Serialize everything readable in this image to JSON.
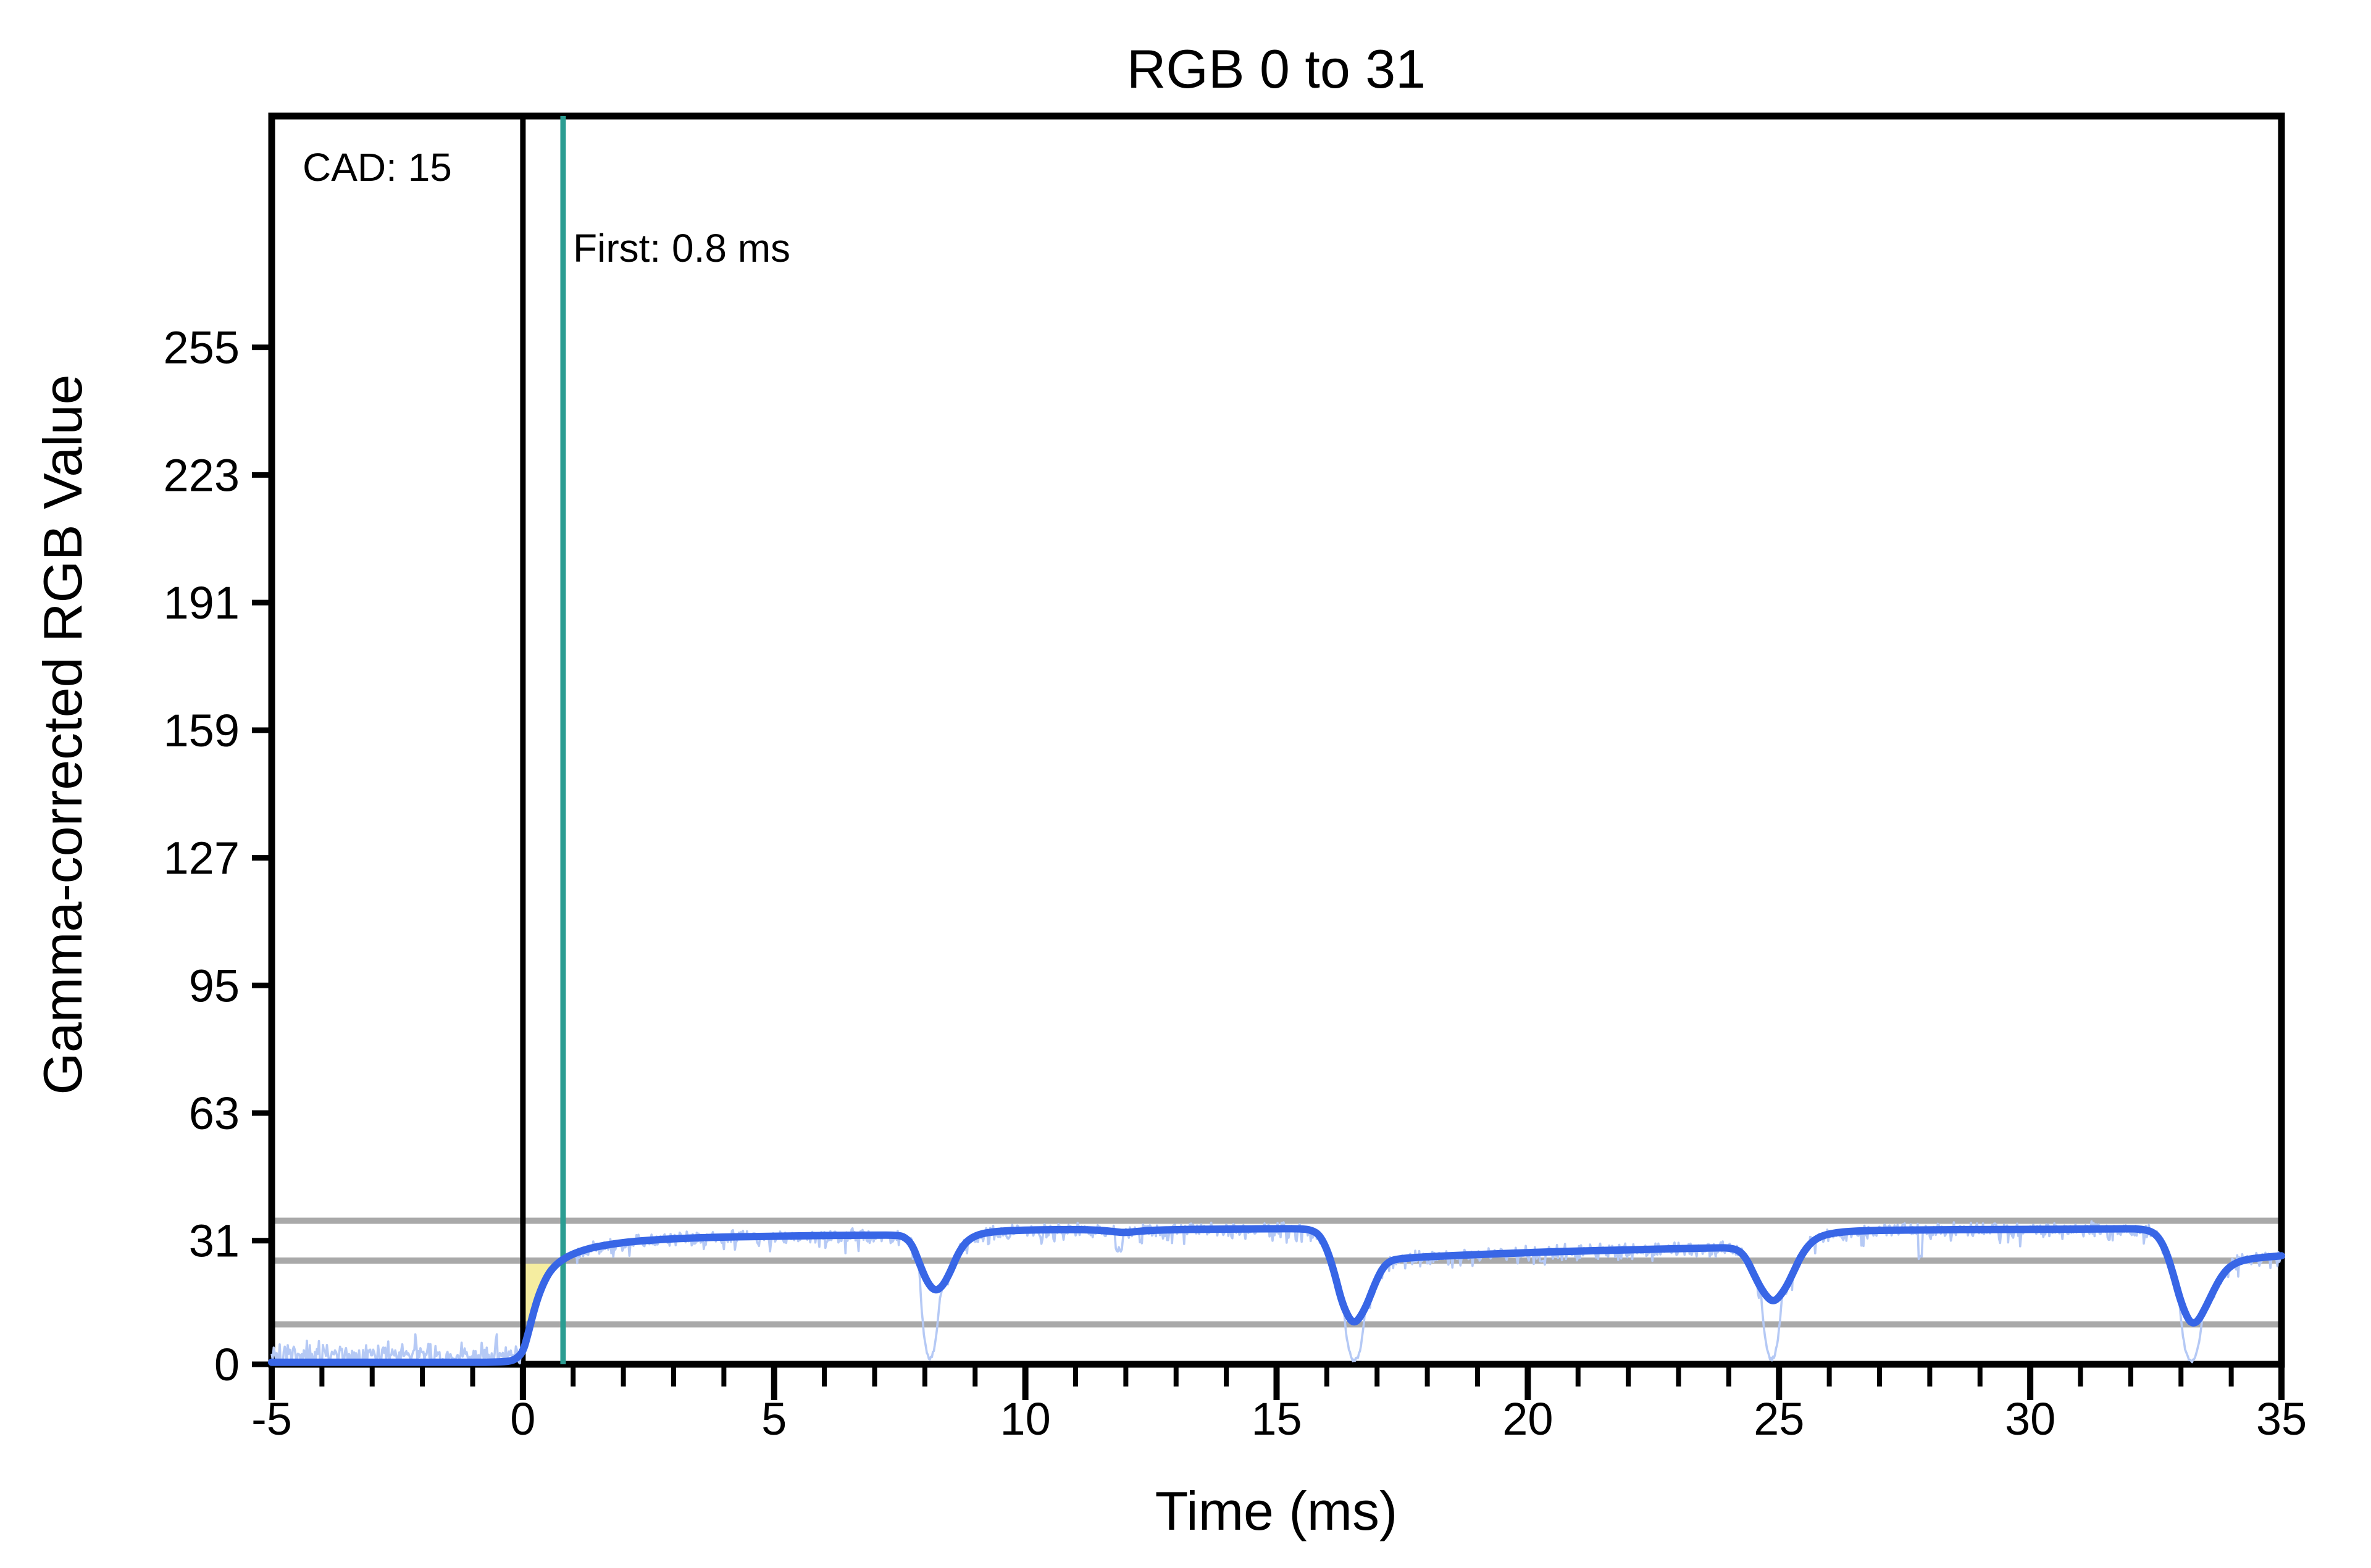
{
  "chart_data": {
    "type": "line",
    "title": "RGB 0 to 31",
    "xlabel": "Time (ms)",
    "ylabel": "Gamma-corrected RGB Value",
    "xlim": [
      -5,
      35
    ],
    "ylim": [
      0,
      313
    ],
    "x_major_ticks": [
      -5,
      0,
      5,
      10,
      15,
      20,
      25,
      30,
      35
    ],
    "x_minor_step": 1,
    "y_ticks": [
      0,
      31,
      63,
      95,
      127,
      159,
      191,
      223,
      255
    ],
    "grid": "off",
    "legend": "none",
    "tolerance_lines": {
      "values": [
        10,
        26,
        36
      ],
      "color": "#A9A9A9"
    },
    "transition_start_line": {
      "x": 0,
      "color": "#000000"
    },
    "first_response_line": {
      "x": 0.8,
      "color": "#2B9D92"
    },
    "annotations": {
      "cad": {
        "text": "CAD: 15"
      },
      "first": {
        "text": "First: 0.8 ms"
      }
    },
    "response_fill": {
      "color": "#F5EDA0",
      "from_x": 0,
      "upper_value": 26
    },
    "series": [
      {
        "name": "raw-sensor-trace",
        "color": "#B5C9F5",
        "derived": "smoothed_plus_noise",
        "sample_step_ms": 0.02,
        "noise": {
          "seed": 20,
          "pre_zero_mean": 2.2,
          "pre_zero_amp": 2.1,
          "pre_zero_max": 7.5,
          "post_amp": 1.15,
          "down_tail_prob": 0.16,
          "down_tail_amp": 2.4,
          "cap": 36.4
        },
        "deep_spikes": [
          {
            "t": 8.1,
            "w": 0.22,
            "floor": 0.8
          },
          {
            "t": 16.55,
            "w": 0.22,
            "floor": 0.4
          },
          {
            "t": 24.85,
            "w": 0.22,
            "floor": 0.7
          },
          {
            "t": 33.2,
            "w": 0.24,
            "floor": 0.4
          }
        ],
        "thin_spikes": [
          {
            "t": 11.85,
            "v": 28.8,
            "w": 0.07
          },
          {
            "t": 20.3,
            "v": 25.5,
            "w": 0.04
          },
          {
            "t": 27.8,
            "v": 27.0,
            "w": 0.04
          },
          {
            "t": 12.3,
            "v": 30.5,
            "w": 0.03
          }
        ]
      },
      {
        "name": "smoothed-trace",
        "color": "#3866E6",
        "points": [
          [
            -5,
            0.5
          ],
          [
            -1.5,
            0.5
          ],
          [
            -0.6,
            0.5
          ],
          [
            -0.3,
            0.7
          ],
          [
            -0.15,
            1.2
          ],
          [
            0,
            3
          ],
          [
            0.1,
            7.5
          ],
          [
            0.2,
            12.5
          ],
          [
            0.3,
            16.8
          ],
          [
            0.4,
            20
          ],
          [
            0.5,
            22.5
          ],
          [
            0.6,
            24.2
          ],
          [
            0.7,
            25.4
          ],
          [
            0.8,
            26.3
          ],
          [
            0.95,
            27.4
          ],
          [
            1.15,
            28.4
          ],
          [
            1.4,
            29.3
          ],
          [
            1.7,
            30
          ],
          [
            2.1,
            30.7
          ],
          [
            2.6,
            31.2
          ],
          [
            3.2,
            31.6
          ],
          [
            4,
            31.9
          ],
          [
            5,
            32.1
          ],
          [
            6,
            32.3
          ],
          [
            7,
            32.4
          ],
          [
            7.45,
            32.4
          ],
          [
            7.6,
            31.9
          ],
          [
            7.75,
            30
          ],
          [
            7.9,
            25
          ],
          [
            8.05,
            20.5
          ],
          [
            8.2,
            18.3
          ],
          [
            8.35,
            19.5
          ],
          [
            8.5,
            23
          ],
          [
            8.65,
            27.5
          ],
          [
            8.8,
            30.5
          ],
          [
            9,
            32.3
          ],
          [
            9.3,
            33.2
          ],
          [
            9.8,
            33.6
          ],
          [
            10.8,
            33.8
          ],
          [
            11.4,
            33.7
          ],
          [
            11.75,
            33.3
          ],
          [
            11.95,
            33
          ],
          [
            12.15,
            33.2
          ],
          [
            12.5,
            33.6
          ],
          [
            13.2,
            33.8
          ],
          [
            14,
            33.9
          ],
          [
            15,
            34
          ],
          [
            15.5,
            34
          ],
          [
            15.7,
            33.6
          ],
          [
            15.85,
            32.5
          ],
          [
            16,
            29
          ],
          [
            16.15,
            23
          ],
          [
            16.3,
            15.5
          ],
          [
            16.45,
            11.3
          ],
          [
            16.55,
            10.4
          ],
          [
            16.65,
            11.5
          ],
          [
            16.8,
            15
          ],
          [
            16.95,
            20
          ],
          [
            17.1,
            24
          ],
          [
            17.25,
            25.9
          ],
          [
            17.45,
            26.5
          ],
          [
            17.9,
            26.9
          ],
          [
            18.6,
            27.3
          ],
          [
            19.4,
            27.7
          ],
          [
            20.2,
            28.1
          ],
          [
            21,
            28.4
          ],
          [
            22,
            28.7
          ],
          [
            23,
            29
          ],
          [
            23.8,
            29.2
          ],
          [
            24,
            29.2
          ],
          [
            24.2,
            28.6
          ],
          [
            24.35,
            26.5
          ],
          [
            24.5,
            22.5
          ],
          [
            24.65,
            18.8
          ],
          [
            24.8,
            16.3
          ],
          [
            24.9,
            15.8
          ],
          [
            25,
            16.8
          ],
          [
            25.15,
            19.5
          ],
          [
            25.3,
            23.5
          ],
          [
            25.45,
            27.5
          ],
          [
            25.65,
            30.8
          ],
          [
            25.9,
            32.5
          ],
          [
            26.3,
            33.3
          ],
          [
            27,
            33.6
          ],
          [
            28,
            33.7
          ],
          [
            29,
            33.8
          ],
          [
            30,
            33.8
          ],
          [
            31,
            33.9
          ],
          [
            32,
            34
          ],
          [
            32.2,
            33.9
          ],
          [
            32.4,
            33.4
          ],
          [
            32.55,
            32
          ],
          [
            32.7,
            28.5
          ],
          [
            32.85,
            22.5
          ],
          [
            33,
            15.5
          ],
          [
            33.15,
            11
          ],
          [
            33.25,
            10.2
          ],
          [
            33.35,
            11
          ],
          [
            33.5,
            14.5
          ],
          [
            33.65,
            18.5
          ],
          [
            33.8,
            22
          ],
          [
            33.95,
            24.3
          ],
          [
            34.15,
            25.8
          ],
          [
            34.45,
            26.6
          ],
          [
            35,
            27.2
          ]
        ]
      }
    ]
  }
}
